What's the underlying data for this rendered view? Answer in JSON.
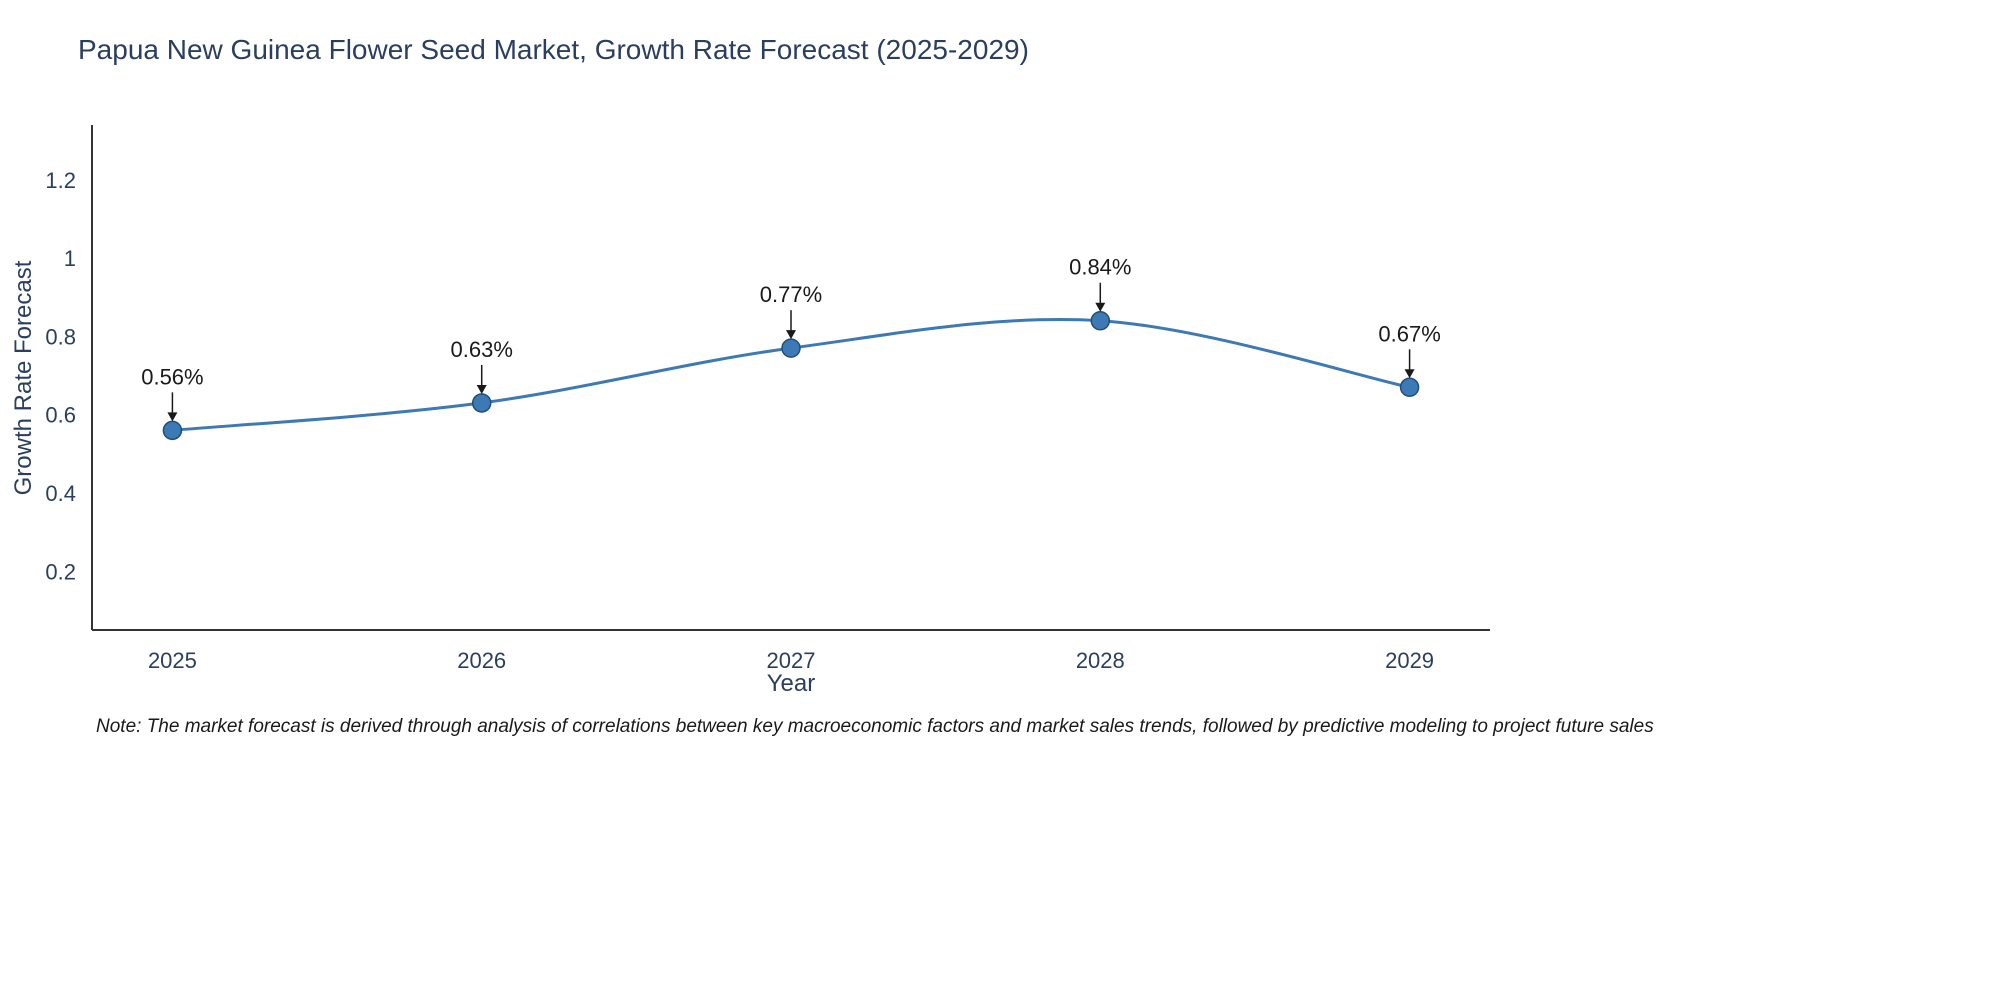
{
  "note": "Note: The market forecast is derived through analysis of correlations between key macroeconomic factors and market sales trends, followed by predictive modeling to project future sales",
  "chart_data": {
    "type": "line",
    "title": "Papua New Guinea Flower Seed Market, Growth Rate Forecast (2025-2029)",
    "xlabel": "Year",
    "ylabel": "Growth Rate Forecast",
    "x": [
      2025,
      2026,
      2027,
      2028,
      2029
    ],
    "y": [
      0.56,
      0.63,
      0.77,
      0.84,
      0.67
    ],
    "point_labels": [
      "0.56%",
      "0.63%",
      "0.77%",
      "0.84%",
      "0.67%"
    ],
    "x_ticks": [
      "2025",
      "2026",
      "2027",
      "2028",
      "2029"
    ],
    "y_ticks": [
      0.2,
      0.4,
      0.6,
      0.8,
      1,
      1.2
    ],
    "xlim": [
      2024.74,
      2029.26
    ],
    "ylim": [
      0.05,
      1.34
    ],
    "grid": false,
    "legend": "none",
    "line_color": "#3d7ab5",
    "marker_color": "#3d7ab5",
    "marker_edge_color": "#1f4e79",
    "tick_label_color": "#2a3f5f",
    "annotation_color": "#1a1a1a",
    "axis_line_color": "#333333"
  }
}
